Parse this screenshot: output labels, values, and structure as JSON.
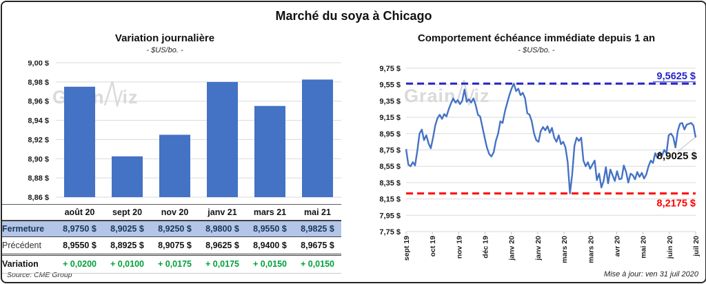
{
  "title": "Marché du soya à Chicago",
  "watermark": "GrainWiz",
  "source_note": "Source: CME Group",
  "update_note": "Mise à jour: ven 31 juil 2020",
  "colors": {
    "series_blue": "#4472C4",
    "grid": "#D9D9D9",
    "axis_text": "#1a1a1a",
    "close_text": "#17375E",
    "close_bg": "#B4C6E7",
    "variation_green": "#00A03C",
    "max_line_blue": "#2626CB",
    "min_line_red": "#FE0000",
    "leader_gray": "#BFBFBF",
    "watermark_gray": "#DADADA"
  },
  "chart_data": [
    {
      "type": "bar",
      "title": "Variation journalière",
      "subtitle": "- $US/bo. -",
      "categories": [
        "août 20",
        "sept 20",
        "nov 20",
        "janv 21",
        "mars 21",
        "mai 21"
      ],
      "values": [
        8.975,
        8.9025,
        8.925,
        8.98,
        8.955,
        8.9825
      ],
      "ylim": [
        8.86,
        9.0
      ],
      "ytick_step": 0.02,
      "ytick_labels": [
        "9,00 $",
        "8,98 $",
        "8,96 $",
        "8,94 $",
        "8,92 $",
        "8,90 $",
        "8,88 $",
        "8,86 $"
      ],
      "grid": true,
      "legend": "none"
    },
    {
      "type": "line",
      "title": "Comportement échéance immédiate depuis 1 an",
      "subtitle": "- $US/bo. -",
      "x_tick_labels": [
        "sept 19",
        "oct 19",
        "nov 19",
        "déc 19",
        "janv 20",
        "janv 20",
        "mars 20",
        "mars 20",
        "avr 20",
        "mai 20",
        "juin 20",
        "juil 20"
      ],
      "ylim": [
        7.75,
        9.75
      ],
      "ytick_step": 0.2,
      "ytick_labels": [
        "9,75 $",
        "9,55 $",
        "9,35 $",
        "9,15 $",
        "8,95 $",
        "8,75 $",
        "8,55 $",
        "8,35 $",
        "8,15 $",
        "7,95 $",
        "7,75 $"
      ],
      "grid": true,
      "legend": "none",
      "max_line": {
        "value": 9.5625,
        "label": "9,5625 $"
      },
      "min_line": {
        "value": 8.2175,
        "label": "8,2175 $"
      },
      "last_point": {
        "value": 8.9025,
        "label": "8,9025 $"
      },
      "values": [
        8.76,
        8.57,
        8.55,
        8.6,
        8.56,
        8.74,
        8.95,
        9.0,
        8.87,
        8.93,
        8.83,
        8.77,
        8.9,
        9.05,
        9.14,
        9.18,
        9.13,
        9.19,
        9.16,
        9.25,
        9.32,
        9.38,
        9.33,
        9.36,
        9.31,
        9.35,
        9.49,
        9.34,
        9.37,
        9.33,
        9.38,
        9.3,
        9.18,
        9.16,
        9.03,
        8.9,
        8.78,
        8.7,
        8.67,
        8.72,
        8.86,
        8.95,
        9.1,
        9.08,
        9.22,
        9.32,
        9.42,
        9.5,
        9.5625,
        9.47,
        9.5,
        9.42,
        9.45,
        9.38,
        9.2,
        9.18,
        9.1,
        8.95,
        8.87,
        8.85,
        8.98,
        9.03,
        8.99,
        9.04,
        8.96,
        9.02,
        8.9,
        8.85,
        8.93,
        8.82,
        8.85,
        8.78,
        8.6,
        8.2175,
        8.45,
        8.8,
        8.9,
        8.86,
        8.9,
        8.62,
        8.55,
        8.6,
        8.52,
        8.57,
        8.62,
        8.38,
        8.46,
        8.29,
        8.37,
        8.54,
        8.34,
        8.51,
        8.44,
        8.37,
        8.49,
        8.39,
        8.4,
        8.56,
        8.48,
        8.35,
        8.46,
        8.44,
        8.39,
        8.48,
        8.42,
        8.47,
        8.4,
        8.45,
        8.55,
        8.62,
        8.59,
        8.71,
        8.65,
        8.72,
        8.68,
        8.75,
        8.71,
        8.93,
        8.95,
        8.91,
        8.78,
        8.98,
        9.07,
        9.08,
        9.0,
        9.06,
        9.07,
        9.08,
        9.05,
        8.9025
      ]
    }
  ],
  "table": {
    "header": [
      "",
      "août 20",
      "sept 20",
      "nov 20",
      "janv 21",
      "mars 21",
      "mai 21"
    ],
    "rows": [
      {
        "label": "Fermeture",
        "style": "close",
        "values": [
          "8,9750 $",
          "8,9025 $",
          "8,9250 $",
          "8,9800 $",
          "8,9550 $",
          "8,9825 $"
        ]
      },
      {
        "label": "Précédent",
        "style": "prev",
        "values": [
          "8,9550 $",
          "8,8925 $",
          "8,9075 $",
          "8,9625 $",
          "8,9400 $",
          "8,9675 $"
        ]
      },
      {
        "label": "Variation",
        "style": "var",
        "values": [
          "+ 0,0200",
          "+ 0,0100",
          "+ 0,0175",
          "+ 0,0175",
          "+ 0,0150",
          "+ 0,0150"
        ]
      }
    ]
  }
}
